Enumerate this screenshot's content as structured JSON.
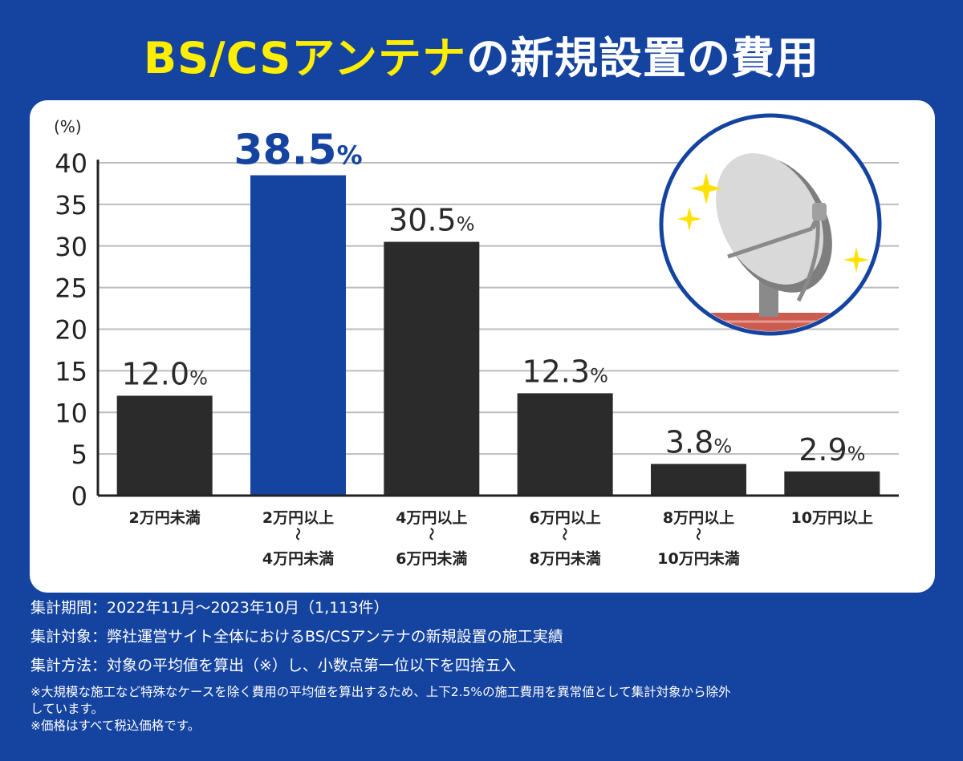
{
  "title": {
    "highlight": "BS/CSアンテナ",
    "rest": "の新規設置の費用"
  },
  "chart_data": {
    "type": "bar",
    "ylabel": "(%)",
    "ylim": [
      0,
      40
    ],
    "yticks": [
      0,
      5,
      10,
      15,
      20,
      25,
      30,
      35,
      40
    ],
    "categories": [
      [
        "2万円未満"
      ],
      [
        "2万円以上",
        "〜",
        "4万円未満"
      ],
      [
        "4万円以上",
        "〜",
        "6万円未満"
      ],
      [
        "6万円以上",
        "〜",
        "8万円未満"
      ],
      [
        "8万円以上",
        "〜",
        "10万円未満"
      ],
      [
        "10万円以上"
      ]
    ],
    "values": [
      12.0,
      38.5,
      30.5,
      12.3,
      3.8,
      2.9
    ],
    "value_labels": [
      "12.0",
      "38.5",
      "30.5",
      "12.3",
      "3.8",
      "2.9"
    ],
    "value_unit": "%",
    "highlight_index": 1,
    "colors": {
      "bar": "#2b2b2b",
      "highlight": "#1443a0",
      "grid": "#bdbdbd"
    },
    "grid": true
  },
  "notes": {
    "period": "集計期間：2022年11月〜2023年10月（1,113件）",
    "target": "集計対象：弊社運営サイト全体におけるBS/CSアンテナの新規設置の施工実績",
    "method": "集計方法：対象の平均値を算出（※）し、小数点第一位以下を四捨五入",
    "note1": "※大規模な施工など特殊なケースを除く費用の平均値を算出するため、上下2.5%の施工費用を異常値として集計対象から除外",
    "note2": "しています。",
    "note3": "※価格はすべて税込価格です。"
  },
  "illustration": {
    "icon": "satellite-dish-icon"
  }
}
